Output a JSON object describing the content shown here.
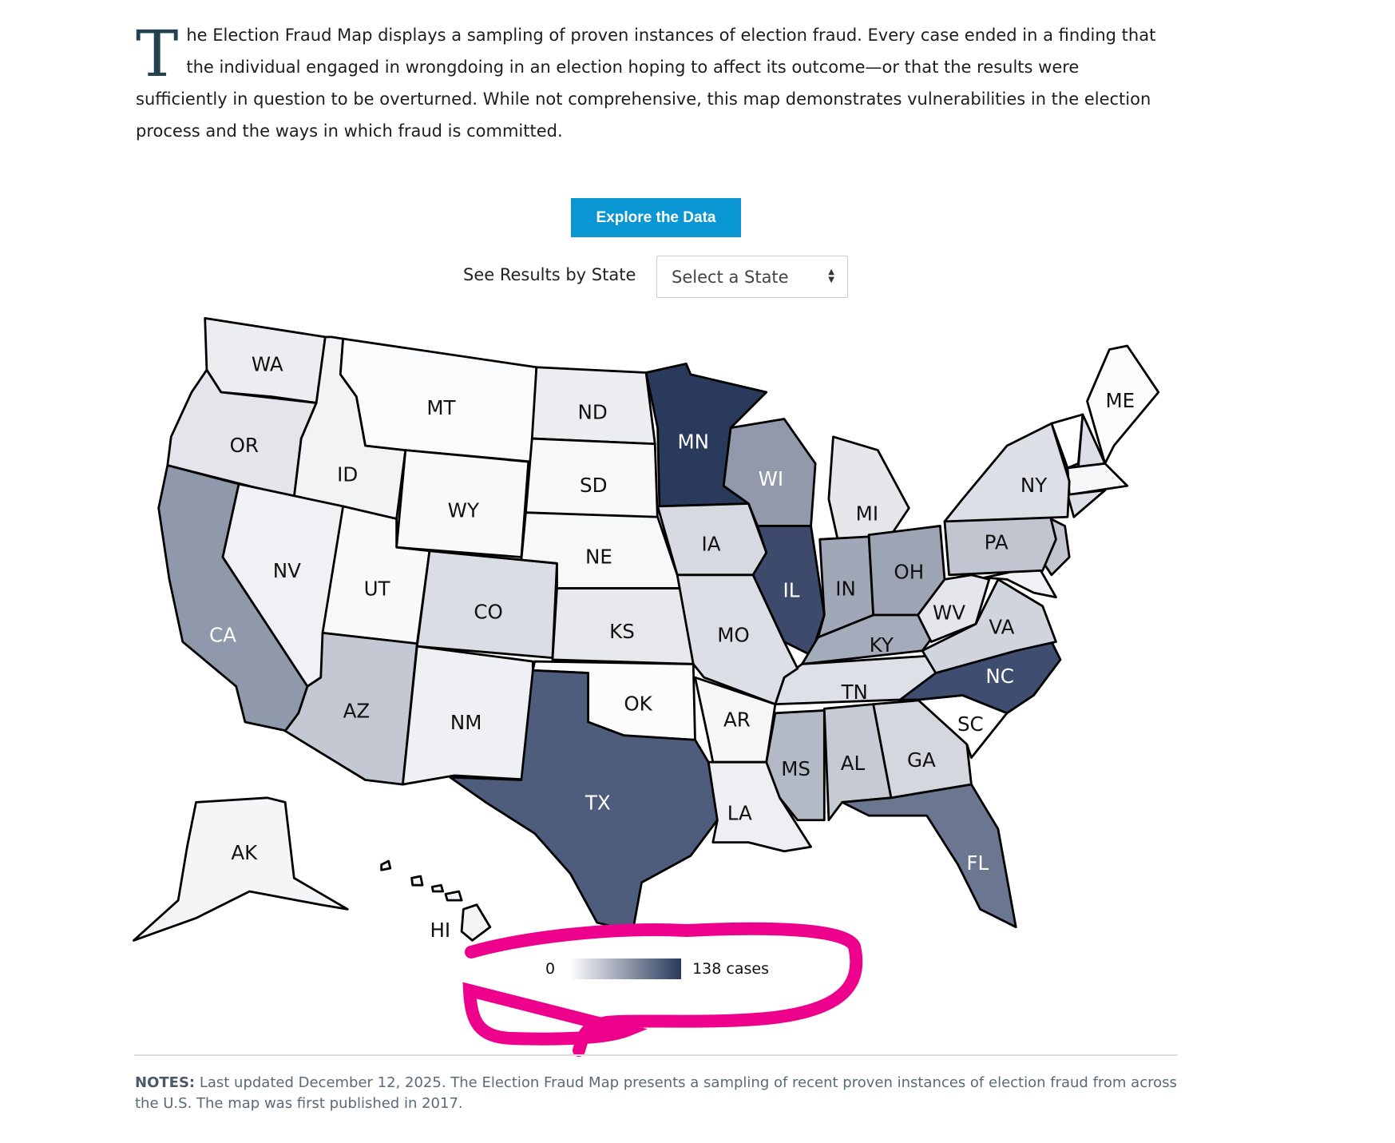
{
  "intro": {
    "dropcap": "T",
    "text": "he Election Fraud Map displays a sampling of proven instances of election fraud. Every case ended in a finding that the individual engaged in wrongdoing in an election hoping to affect its outcome—or that the results were sufficiently in question to be overturned. While not comprehensive, this map demonstrates vulnerabilities in the election process and the ways in which fraud is committed."
  },
  "explore_button": "Explore the Data",
  "state_select": {
    "label": "See Results by State",
    "value": "Select a State"
  },
  "map": {
    "states": [
      "WA",
      "OR",
      "CA",
      "ID",
      "NV",
      "MT",
      "WY",
      "UT",
      "AZ",
      "CO",
      "NM",
      "ND",
      "SD",
      "NE",
      "KS",
      "OK",
      "TX",
      "MN",
      "IA",
      "WI",
      "IL",
      "MI",
      "IN",
      "OH",
      "KY",
      "TN",
      "MO",
      "AR",
      "LA",
      "MS",
      "AL",
      "GA",
      "FL",
      "SC",
      "NC",
      "VA",
      "WV",
      "PA",
      "NY",
      "ME",
      "AK",
      "HI"
    ],
    "shading_colors": {
      "darkest": "#2a3a5c",
      "lightest": "#ffffff"
    }
  },
  "legend": {
    "min": "0",
    "max": "138 cases"
  },
  "annotation_color": "#ec008c",
  "notes": {
    "label": "NOTES:",
    "text": " Last updated December 12, 2025. The Election Fraud Map presents a sampling of recent proven instances of election fraud from across the U.S. The map was first published in 2017."
  }
}
